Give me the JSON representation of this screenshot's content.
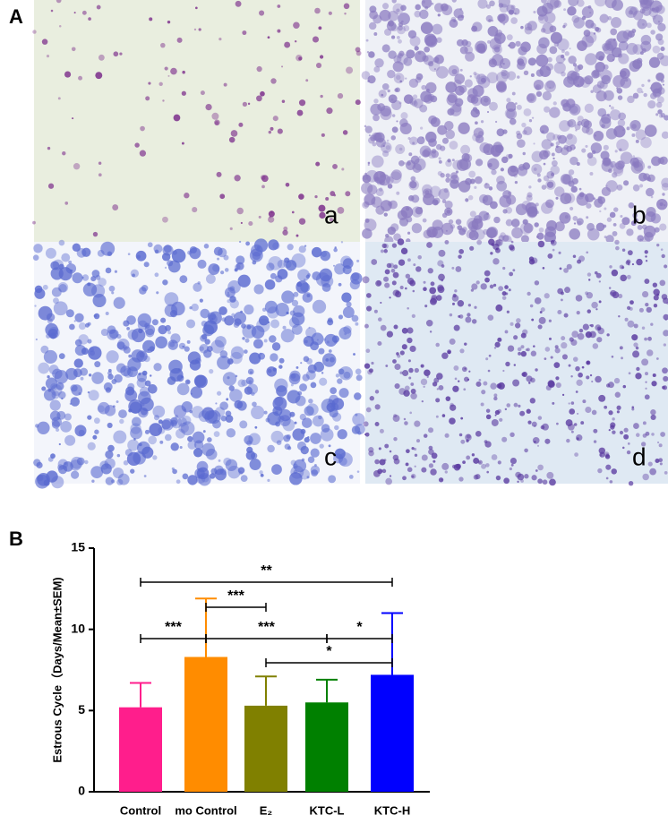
{
  "figure": {
    "panel_labels": [
      "A",
      "B"
    ],
    "image_labels": [
      "a",
      "b",
      "c",
      "d"
    ]
  },
  "chart_data": {
    "type": "bar",
    "ylabel": "Estrous Cycle（Days/Mean±SEM)",
    "categories": [
      "Control",
      "mo Control",
      "E₂",
      "KTC-L",
      "KTC-H"
    ],
    "values": [
      5.2,
      8.3,
      5.3,
      5.5,
      7.2
    ],
    "errors": [
      1.5,
      3.6,
      1.8,
      1.4,
      3.8
    ],
    "colors": [
      "#ff1e8c",
      "#ff8c00",
      "#808000",
      "#008000",
      "#0000ff"
    ],
    "ylim": [
      0,
      15
    ],
    "yticks": [
      0,
      5,
      10,
      15
    ],
    "comparisons": [
      {
        "label": "**",
        "between": [
          "Control",
          "KTC-H"
        ]
      },
      {
        "label": "***",
        "between": [
          "mo Control",
          "E₂"
        ]
      },
      {
        "label": "***",
        "between": [
          "Control",
          "mo Control"
        ]
      },
      {
        "label": "***",
        "between": [
          "mo Control",
          "KTC-L"
        ]
      },
      {
        "label": "*",
        "between": [
          "KTC-L",
          "KTC-H"
        ]
      },
      {
        "label": "*",
        "between": [
          "E₂",
          "KTC-H"
        ]
      }
    ]
  }
}
